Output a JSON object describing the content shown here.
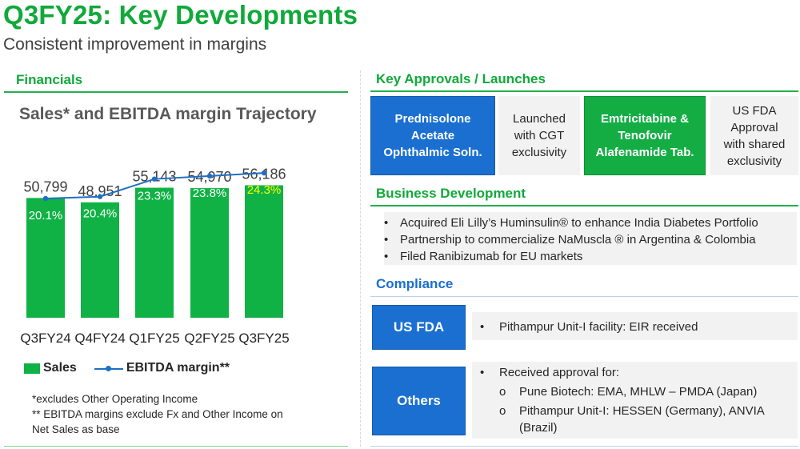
{
  "header": {
    "title": "Q3FY25: Key Developments",
    "subtitle": "Consistent improvement in margins"
  },
  "financials": {
    "heading": "Financials",
    "chart_title": "Sales* and EBITDA margin Trajectory",
    "legend": {
      "sales": "Sales",
      "margin": "EBITDA margin**"
    },
    "notes": [
      "*excludes Other Operating Income",
      "** EBITDA margins exclude Fx and Other Income on",
      "Net Sales as base"
    ]
  },
  "chart_data": {
    "type": "bar",
    "title": "Sales* and EBITDA margin Trajectory",
    "categories": [
      "Q3FY24",
      "Q4FY24",
      "Q1FY25",
      "Q2FY25",
      "Q3FY25"
    ],
    "series": [
      {
        "name": "Sales",
        "type": "bar",
        "values": [
          50799,
          48951,
          55143,
          54970,
          56186
        ],
        "labels": [
          "50,799",
          "48,951",
          "55,143",
          "54,970",
          "56,186"
        ]
      },
      {
        "name": "EBITDA margin**",
        "type": "line",
        "values": [
          20.1,
          20.4,
          23.3,
          23.8,
          24.3
        ],
        "labels": [
          "20.1%",
          "20.4%",
          "23.3%",
          "23.8%",
          "24.3%"
        ]
      }
    ],
    "legend": "bottom",
    "grid": false,
    "colors": {
      "bar": "#10b245",
      "line": "#1f6fc5",
      "label": "#ffffff",
      "highlight_label": "#ffff00"
    }
  },
  "approvals": {
    "heading": "Key Approvals / Launches",
    "items": [
      {
        "product": [
          "Prednisolone",
          "Acetate",
          "Ophthalmic Soln."
        ],
        "status": [
          "Launched",
          "with CGT",
          "exclusivity"
        ]
      },
      {
        "product": [
          "Emtricitabine &",
          "Tenofovir",
          "Alafenamide Tab."
        ],
        "status": [
          "US FDA",
          "Approval",
          "with shared",
          "exclusivity"
        ]
      }
    ]
  },
  "business_development": {
    "heading": "Business Development",
    "items": [
      "Acquired Eli Lilly’s Huminsulin® to enhance India Diabetes Portfolio",
      "Partnership to commercialize NaMuscla ® in Argentina & Colombia",
      "Filed Ranibizumab for EU markets"
    ]
  },
  "compliance": {
    "heading": "Compliance",
    "bullet": "•",
    "sub_bullet": "o",
    "us_fda": {
      "label": "US FDA",
      "text": "Pithampur Unit-I facility: EIR received"
    },
    "others": {
      "label": "Others",
      "intro": "Received approval for:",
      "items": [
        "Pune Biotech: EMA, MHLW – PMDA (Japan)",
        "Pithampur Unit-I: HESSEN (Germany), ANVIA",
        "(Brazil)"
      ]
    }
  }
}
